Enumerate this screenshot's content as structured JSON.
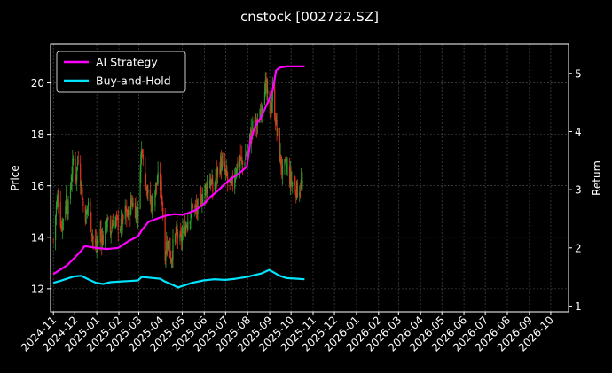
{
  "chart_data": {
    "type": "line",
    "title": "cnstock [002722.SZ]",
    "ylabel": "Price",
    "y2label": "Return",
    "ylim": [
      11.1,
      21.5
    ],
    "y2lim": [
      0.9,
      5.5
    ],
    "xlim": [
      "2024-10-28",
      "2026-10-26"
    ],
    "yticks": [
      "12",
      "14",
      "16",
      "18",
      "20"
    ],
    "y2ticks": [
      "1",
      "2",
      "3",
      "4",
      "5"
    ],
    "xticks": [
      "2024-11",
      "2024-12",
      "2025-01",
      "2025-02",
      "2025-03",
      "2025-04",
      "2025-05",
      "2025-06",
      "2025-07",
      "2025-08",
      "2025-09",
      "2025-10",
      "2025-11",
      "2025-12",
      "2026-01",
      "2026-02",
      "2026-03",
      "2026-04",
      "2026-05",
      "2026-06",
      "2026-07",
      "2026-08",
      "2026-09",
      "2026-10"
    ],
    "grid": true,
    "legend_position": "top-left",
    "price_candles": {
      "up_color": "#2e9d2e",
      "down_color": "#e0301e",
      "close": [
        [
          "2024-11-01",
          13.9
        ],
        [
          "2024-11-05",
          15.2
        ],
        [
          "2024-11-08",
          15.6
        ],
        [
          "2024-11-12",
          14.4
        ],
        [
          "2024-11-15",
          14.8
        ],
        [
          "2024-11-19",
          15.6
        ],
        [
          "2024-11-22",
          15.1
        ],
        [
          "2024-11-26",
          16.3
        ],
        [
          "2024-11-29",
          17.0
        ],
        [
          "2024-12-03",
          16.4
        ],
        [
          "2024-12-06",
          17.2
        ],
        [
          "2024-12-10",
          16.0
        ],
        [
          "2024-12-13",
          15.2
        ],
        [
          "2024-12-17",
          14.8
        ],
        [
          "2024-12-20",
          15.4
        ],
        [
          "2024-12-24",
          14.5
        ],
        [
          "2024-12-27",
          13.9
        ],
        [
          "2024-12-31",
          13.6
        ],
        [
          "2025-01-06",
          14.2
        ],
        [
          "2025-01-10",
          13.9
        ],
        [
          "2025-01-15",
          14.6
        ],
        [
          "2025-01-20",
          14.2
        ],
        [
          "2025-01-24",
          14.7
        ],
        [
          "2025-02-05",
          14.4
        ],
        [
          "2025-02-10",
          15.0
        ],
        [
          "2025-02-14",
          14.8
        ],
        [
          "2025-02-19",
          15.4
        ],
        [
          "2025-02-24",
          15.1
        ],
        [
          "2025-02-28",
          14.9
        ],
        [
          "2025-03-03",
          16.9
        ],
        [
          "2025-03-06",
          17.6
        ],
        [
          "2025-03-10",
          16.5
        ],
        [
          "2025-03-14",
          15.6
        ],
        [
          "2025-03-19",
          15.3
        ],
        [
          "2025-03-24",
          15.9
        ],
        [
          "2025-03-28",
          16.2
        ],
        [
          "2025-04-02",
          15.8
        ],
        [
          "2025-04-07",
          13.4
        ],
        [
          "2025-04-10",
          13.9
        ],
        [
          "2025-04-15",
          13.2
        ],
        [
          "2025-04-18",
          13.6
        ],
        [
          "2025-04-23",
          14.2
        ],
        [
          "2025-04-28",
          13.8
        ],
        [
          "2025-05-06",
          14.5
        ],
        [
          "2025-05-12",
          14.9
        ],
        [
          "2025-05-16",
          15.3
        ],
        [
          "2025-05-21",
          15.0
        ],
        [
          "2025-05-26",
          15.4
        ],
        [
          "2025-06-03",
          15.9
        ],
        [
          "2025-06-09",
          16.3
        ],
        [
          "2025-06-13",
          15.8
        ],
        [
          "2025-06-18",
          16.4
        ],
        [
          "2025-06-24",
          16.9
        ],
        [
          "2025-06-30",
          16.5
        ],
        [
          "2025-07-04",
          16.2
        ],
        [
          "2025-07-09",
          15.9
        ],
        [
          "2025-07-15",
          16.6
        ],
        [
          "2025-07-21",
          17.1
        ],
        [
          "2025-07-25",
          16.8
        ],
        [
          "2025-07-31",
          17.4
        ],
        [
          "2025-08-05",
          17.9
        ],
        [
          "2025-08-11",
          18.6
        ],
        [
          "2025-08-15",
          18.2
        ],
        [
          "2025-08-20",
          19.1
        ],
        [
          "2025-08-25",
          20.0
        ],
        [
          "2025-08-29",
          19.4
        ],
        [
          "2025-09-02",
          18.8
        ],
        [
          "2025-09-05",
          19.6
        ],
        [
          "2025-09-10",
          18.4
        ],
        [
          "2025-09-15",
          17.2
        ],
        [
          "2025-09-19",
          16.5
        ],
        [
          "2025-09-24",
          16.8
        ],
        [
          "2025-09-29",
          16.3
        ],
        [
          "2025-10-10",
          15.8
        ],
        [
          "2025-10-15",
          16.1
        ],
        [
          "2025-10-20",
          15.6
        ]
      ]
    },
    "series": [
      {
        "name": "AI Strategy",
        "color": "#ff00ff",
        "axis": "right",
        "points": [
          [
            "2024-11-01",
            1.55
          ],
          [
            "2024-11-10",
            1.62
          ],
          [
            "2024-11-20",
            1.7
          ],
          [
            "2024-11-30",
            1.82
          ],
          [
            "2024-12-10",
            1.95
          ],
          [
            "2024-12-15",
            2.03
          ],
          [
            "2024-12-31",
            2.0
          ],
          [
            "2025-01-15",
            1.98
          ],
          [
            "2025-01-31",
            2.0
          ],
          [
            "2025-02-15",
            2.12
          ],
          [
            "2025-02-28",
            2.2
          ],
          [
            "2025-03-05",
            2.3
          ],
          [
            "2025-03-15",
            2.45
          ],
          [
            "2025-03-31",
            2.52
          ],
          [
            "2025-04-10",
            2.56
          ],
          [
            "2025-04-20",
            2.58
          ],
          [
            "2025-05-01",
            2.57
          ],
          [
            "2025-05-10",
            2.6
          ],
          [
            "2025-05-20",
            2.65
          ],
          [
            "2025-05-31",
            2.75
          ],
          [
            "2025-06-10",
            2.88
          ],
          [
            "2025-06-20",
            2.98
          ],
          [
            "2025-06-30",
            3.1
          ],
          [
            "2025-07-10",
            3.2
          ],
          [
            "2025-07-20",
            3.28
          ],
          [
            "2025-07-31",
            3.4
          ],
          [
            "2025-08-05",
            3.85
          ],
          [
            "2025-08-12",
            4.1
          ],
          [
            "2025-08-20",
            4.25
          ],
          [
            "2025-08-31",
            4.55
          ],
          [
            "2025-09-05",
            4.7
          ],
          [
            "2025-09-10",
            5.05
          ],
          [
            "2025-09-15",
            5.1
          ],
          [
            "2025-09-25",
            5.12
          ],
          [
            "2025-10-20",
            5.12
          ]
        ]
      },
      {
        "name": "Buy-and-Hold",
        "color": "#00e5ff",
        "axis": "right",
        "points": [
          [
            "2024-11-01",
            1.4
          ],
          [
            "2024-11-10",
            1.43
          ],
          [
            "2024-11-20",
            1.47
          ],
          [
            "2024-11-30",
            1.51
          ],
          [
            "2024-12-10",
            1.52
          ],
          [
            "2024-12-20",
            1.46
          ],
          [
            "2024-12-31",
            1.4
          ],
          [
            "2025-01-10",
            1.38
          ],
          [
            "2025-01-20",
            1.41
          ],
          [
            "2025-01-31",
            1.42
          ],
          [
            "2025-02-15",
            1.43
          ],
          [
            "2025-02-28",
            1.44
          ],
          [
            "2025-03-05",
            1.5
          ],
          [
            "2025-03-15",
            1.49
          ],
          [
            "2025-03-31",
            1.47
          ],
          [
            "2025-04-07",
            1.42
          ],
          [
            "2025-04-15",
            1.38
          ],
          [
            "2025-04-25",
            1.32
          ],
          [
            "2025-05-05",
            1.36
          ],
          [
            "2025-05-15",
            1.4
          ],
          [
            "2025-05-31",
            1.44
          ],
          [
            "2025-06-15",
            1.46
          ],
          [
            "2025-06-30",
            1.45
          ],
          [
            "2025-07-15",
            1.47
          ],
          [
            "2025-07-31",
            1.5
          ],
          [
            "2025-08-10",
            1.53
          ],
          [
            "2025-08-20",
            1.56
          ],
          [
            "2025-08-31",
            1.62
          ],
          [
            "2025-09-05",
            1.59
          ],
          [
            "2025-09-15",
            1.52
          ],
          [
            "2025-09-25",
            1.48
          ],
          [
            "2025-10-10",
            1.47
          ],
          [
            "2025-10-20",
            1.46
          ]
        ]
      }
    ]
  }
}
